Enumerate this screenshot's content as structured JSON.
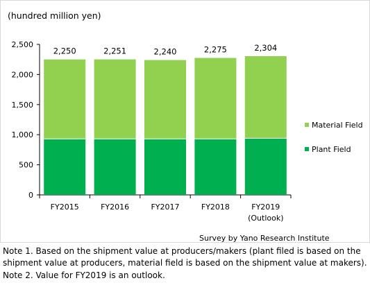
{
  "unit_label": "(hundred million yen)",
  "source": "Survey by Yano Research Institute",
  "notes": [
    "Note 1. Based on the shipment value at producers/makers (plant filed is based on the shipment value at producers, material field is based on the shipment value at makers).",
    "Note 2. Value for FY2019 is an outlook."
  ],
  "colors": {
    "material": "#92d050",
    "plant": "#00b050",
    "gridline": "#d9d9d9",
    "axis": "#000000"
  },
  "chart_data": {
    "type": "bar",
    "stacked": true,
    "categories": [
      "FY2015",
      "FY2016",
      "FY2017",
      "FY2018",
      "FY2019"
    ],
    "category_sublabels": [
      "",
      "",
      "",
      "",
      "(Outlook)"
    ],
    "series": [
      {
        "name": "Plant Field",
        "values": [
          930,
          930,
          930,
          930,
          940
        ]
      },
      {
        "name": "Material Field",
        "values": [
          1320,
          1321,
          1310,
          1345,
          1364
        ]
      }
    ],
    "totals": [
      "2,250",
      "2,251",
      "2,240",
      "2,275",
      "2,304"
    ],
    "yticks": [
      "0",
      "500",
      "1,000",
      "1,500",
      "2,000",
      "2,500"
    ],
    "ylim": [
      0,
      2500
    ],
    "grid": false,
    "legend": "right"
  }
}
